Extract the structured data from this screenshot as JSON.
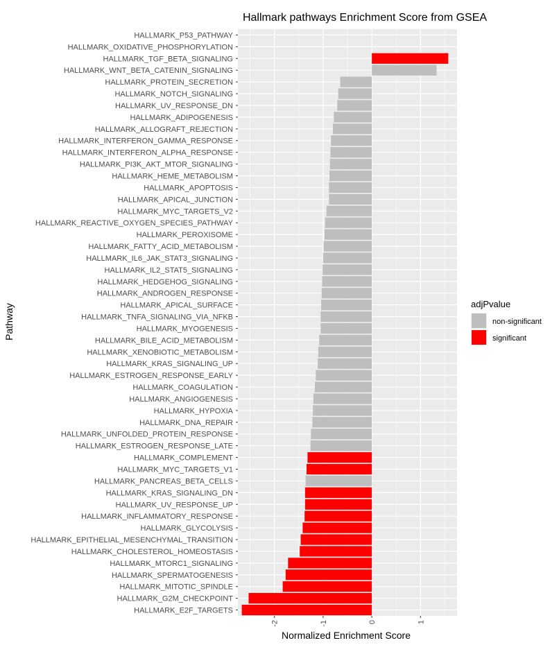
{
  "chart_data": {
    "type": "bar",
    "orientation": "horizontal",
    "title": "Hallmark pathways Enrichment Score from GSEA",
    "xlabel": "Normalized Enrichment Score",
    "ylabel": "Pathway",
    "xlim": [
      -2.75,
      1.75
    ],
    "xticks": [
      -2,
      -1,
      0,
      1
    ],
    "xtick_labels": [
      "-2",
      "-1",
      "0",
      "1"
    ],
    "grid": true,
    "legend": {
      "title": "adjPvalue",
      "position": "right",
      "entries": [
        {
          "label": "non-significant",
          "color": "#BEBEBE"
        },
        {
          "label": "significant",
          "color": "#FF0000"
        }
      ]
    },
    "bars": [
      {
        "pathway": "HALLMARK_P53_PATHWAY",
        "nes": 0.0,
        "status": "non-significant"
      },
      {
        "pathway": "HALLMARK_OXIDATIVE_PHOSPHORYLATION",
        "nes": 0.0,
        "status": "non-significant"
      },
      {
        "pathway": "HALLMARK_TGF_BETA_SIGNALING",
        "nes": 1.57,
        "status": "significant"
      },
      {
        "pathway": "HALLMARK_WNT_BETA_CATENIN_SIGNALING",
        "nes": 1.33,
        "status": "non-significant"
      },
      {
        "pathway": "HALLMARK_PROTEIN_SECRETION",
        "nes": -0.65,
        "status": "non-significant"
      },
      {
        "pathway": "HALLMARK_NOTCH_SIGNALING",
        "nes": -0.69,
        "status": "non-significant"
      },
      {
        "pathway": "HALLMARK_UV_RESPONSE_DN",
        "nes": -0.71,
        "status": "non-significant"
      },
      {
        "pathway": "HALLMARK_ADIPOGENESIS",
        "nes": -0.78,
        "status": "non-significant"
      },
      {
        "pathway": "HALLMARK_ALLOGRAFT_REJECTION",
        "nes": -0.8,
        "status": "non-significant"
      },
      {
        "pathway": "HALLMARK_INTERFERON_GAMMA_RESPONSE",
        "nes": -0.84,
        "status": "non-significant"
      },
      {
        "pathway": "HALLMARK_INTERFERON_ALPHA_RESPONSE",
        "nes": -0.85,
        "status": "non-significant"
      },
      {
        "pathway": "HALLMARK_PI3K_AKT_MTOR_SIGNALING",
        "nes": -0.86,
        "status": "non-significant"
      },
      {
        "pathway": "HALLMARK_HEME_METABOLISM",
        "nes": -0.87,
        "status": "non-significant"
      },
      {
        "pathway": "HALLMARK_APOPTOSIS",
        "nes": -0.88,
        "status": "non-significant"
      },
      {
        "pathway": "HALLMARK_APICAL_JUNCTION",
        "nes": -0.88,
        "status": "non-significant"
      },
      {
        "pathway": "HALLMARK_MYC_TARGETS_V2",
        "nes": -0.93,
        "status": "non-significant"
      },
      {
        "pathway": "HALLMARK_REACTIVE_OXYGEN_SPECIES_PATHWAY",
        "nes": -0.96,
        "status": "non-significant"
      },
      {
        "pathway": "HALLMARK_PEROXISOME",
        "nes": -0.97,
        "status": "non-significant"
      },
      {
        "pathway": "HALLMARK_FATTY_ACID_METABOLISM",
        "nes": -0.99,
        "status": "non-significant"
      },
      {
        "pathway": "HALLMARK_IL6_JAK_STAT3_SIGNALING",
        "nes": -1.0,
        "status": "non-significant"
      },
      {
        "pathway": "HALLMARK_IL2_STAT5_SIGNALING",
        "nes": -1.01,
        "status": "non-significant"
      },
      {
        "pathway": "HALLMARK_HEDGEHOG_SIGNALING",
        "nes": -1.02,
        "status": "non-significant"
      },
      {
        "pathway": "HALLMARK_ANDROGEN_RESPONSE",
        "nes": -1.03,
        "status": "non-significant"
      },
      {
        "pathway": "HALLMARK_APICAL_SURFACE",
        "nes": -1.04,
        "status": "non-significant"
      },
      {
        "pathway": "HALLMARK_TNFA_SIGNALING_VIA_NFKB",
        "nes": -1.05,
        "status": "non-significant"
      },
      {
        "pathway": "HALLMARK_MYOGENESIS",
        "nes": -1.05,
        "status": "non-significant"
      },
      {
        "pathway": "HALLMARK_BILE_ACID_METABOLISM",
        "nes": -1.08,
        "status": "non-significant"
      },
      {
        "pathway": "HALLMARK_XENOBIOTIC_METABOLISM",
        "nes": -1.1,
        "status": "non-significant"
      },
      {
        "pathway": "HALLMARK_KRAS_SIGNALING_UP",
        "nes": -1.11,
        "status": "non-significant"
      },
      {
        "pathway": "HALLMARK_ESTROGEN_RESPONSE_EARLY",
        "nes": -1.15,
        "status": "non-significant"
      },
      {
        "pathway": "HALLMARK_COAGULATION",
        "nes": -1.17,
        "status": "non-significant"
      },
      {
        "pathway": "HALLMARK_ANGIOGENESIS",
        "nes": -1.2,
        "status": "non-significant"
      },
      {
        "pathway": "HALLMARK_HYPOXIA",
        "nes": -1.21,
        "status": "non-significant"
      },
      {
        "pathway": "HALLMARK_DNA_REPAIR",
        "nes": -1.22,
        "status": "non-significant"
      },
      {
        "pathway": "HALLMARK_UNFOLDED_PROTEIN_RESPONSE",
        "nes": -1.25,
        "status": "non-significant"
      },
      {
        "pathway": "HALLMARK_ESTROGEN_RESPONSE_LATE",
        "nes": -1.26,
        "status": "non-significant"
      },
      {
        "pathway": "HALLMARK_COMPLEMENT",
        "nes": -1.32,
        "status": "significant"
      },
      {
        "pathway": "HALLMARK_MYC_TARGETS_V1",
        "nes": -1.34,
        "status": "significant"
      },
      {
        "pathway": "HALLMARK_PANCREAS_BETA_CELLS",
        "nes": -1.36,
        "status": "non-significant"
      },
      {
        "pathway": "HALLMARK_KRAS_SIGNALING_DN",
        "nes": -1.37,
        "status": "significant"
      },
      {
        "pathway": "HALLMARK_UV_RESPONSE_UP",
        "nes": -1.37,
        "status": "significant"
      },
      {
        "pathway": "HALLMARK_INFLAMMATORY_RESPONSE",
        "nes": -1.38,
        "status": "significant"
      },
      {
        "pathway": "HALLMARK_GLYCOLYSIS",
        "nes": -1.42,
        "status": "significant"
      },
      {
        "pathway": "HALLMARK_EPITHELIAL_MESENCHYMAL_TRANSITION",
        "nes": -1.46,
        "status": "significant"
      },
      {
        "pathway": "HALLMARK_CHOLESTEROL_HOMEOSTASIS",
        "nes": -1.48,
        "status": "significant"
      },
      {
        "pathway": "HALLMARK_MTORC1_SIGNALING",
        "nes": -1.72,
        "status": "significant"
      },
      {
        "pathway": "HALLMARK_SPERMATOGENESIS",
        "nes": -1.77,
        "status": "significant"
      },
      {
        "pathway": "HALLMARK_MITOTIC_SPINDLE",
        "nes": -1.83,
        "status": "significant"
      },
      {
        "pathway": "HALLMARK_G2M_CHECKPOINT",
        "nes": -2.53,
        "status": "significant"
      },
      {
        "pathway": "HALLMARK_E2F_TARGETS",
        "nes": -2.67,
        "status": "significant"
      }
    ]
  }
}
